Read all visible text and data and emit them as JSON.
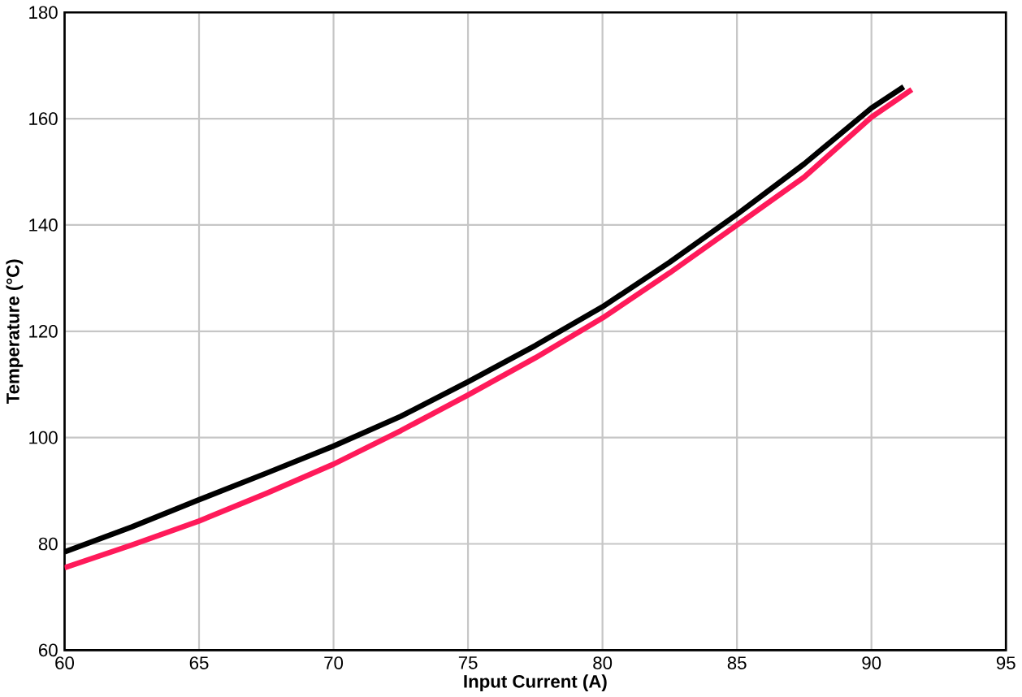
{
  "chart_data": {
    "type": "line",
    "xlabel": "Input Current (A)",
    "ylabel": "Temperature (°C)",
    "xlim": [
      60,
      95
    ],
    "ylim": [
      60,
      180
    ],
    "xticks": [
      60,
      65,
      70,
      75,
      80,
      85,
      90,
      95
    ],
    "yticks": [
      60,
      80,
      100,
      120,
      140,
      160,
      180
    ],
    "grid": true,
    "line_style": "solid",
    "series": [
      {
        "color": "#000000",
        "x": [
          60,
          62.5,
          65,
          67.5,
          70,
          72.5,
          75,
          77.5,
          80,
          82.5,
          85,
          87.5,
          90,
          91.2
        ],
        "values": [
          78.5,
          83.2,
          88.3,
          93.3,
          98.4,
          104,
          110.5,
          117.3,
          124.6,
          133,
          142,
          151.5,
          162,
          166
        ]
      },
      {
        "color": "#ff1a5a",
        "x": [
          60,
          62.5,
          65,
          67.5,
          70,
          72.5,
          75,
          77.5,
          80,
          82.5,
          85,
          87.5,
          90,
          91.5
        ],
        "values": [
          75.5,
          79.8,
          84.3,
          89.5,
          95,
          101.3,
          108,
          115,
          122.5,
          131,
          140,
          149,
          160.3,
          165.5
        ]
      }
    ]
  }
}
